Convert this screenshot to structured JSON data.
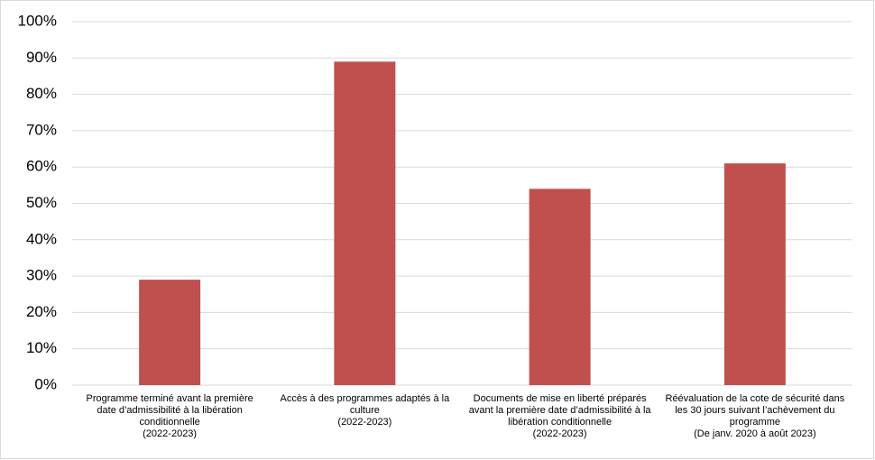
{
  "chart_data": {
    "type": "bar",
    "categories": [
      [
        "Programme terminé avant la première date d’admissibilité à la libération conditionnelle",
        "(2022-2023)"
      ],
      [
        "Accès à des programmes adaptés à la culture",
        "(2022-2023)"
      ],
      [
        "Documents de mise en liberté préparés avant la première date d’admissibilité à la libération conditionnelle",
        "(2022-2023)"
      ],
      [
        "Réévaluation de la cote de sécurité dans les 30 jours suivant l’achèvement du programme",
        "(De janv. 2020 à août 2023)"
      ]
    ],
    "values": [
      29,
      89,
      54,
      61
    ],
    "color": "#c0504d",
    "ylim": [
      0,
      100
    ],
    "yticks": [
      {
        "value": 0,
        "label": "0%"
      },
      {
        "value": 10,
        "label": "10%"
      },
      {
        "value": 20,
        "label": "20%"
      },
      {
        "value": 30,
        "label": "30%"
      },
      {
        "value": 40,
        "label": "40%"
      },
      {
        "value": 50,
        "label": "50%"
      },
      {
        "value": 60,
        "label": "60%"
      },
      {
        "value": 70,
        "label": "70%"
      },
      {
        "value": 80,
        "label": "80%"
      },
      {
        "value": 90,
        "label": "90%"
      },
      {
        "value": 100,
        "label": "100%"
      }
    ],
    "grid": true
  }
}
